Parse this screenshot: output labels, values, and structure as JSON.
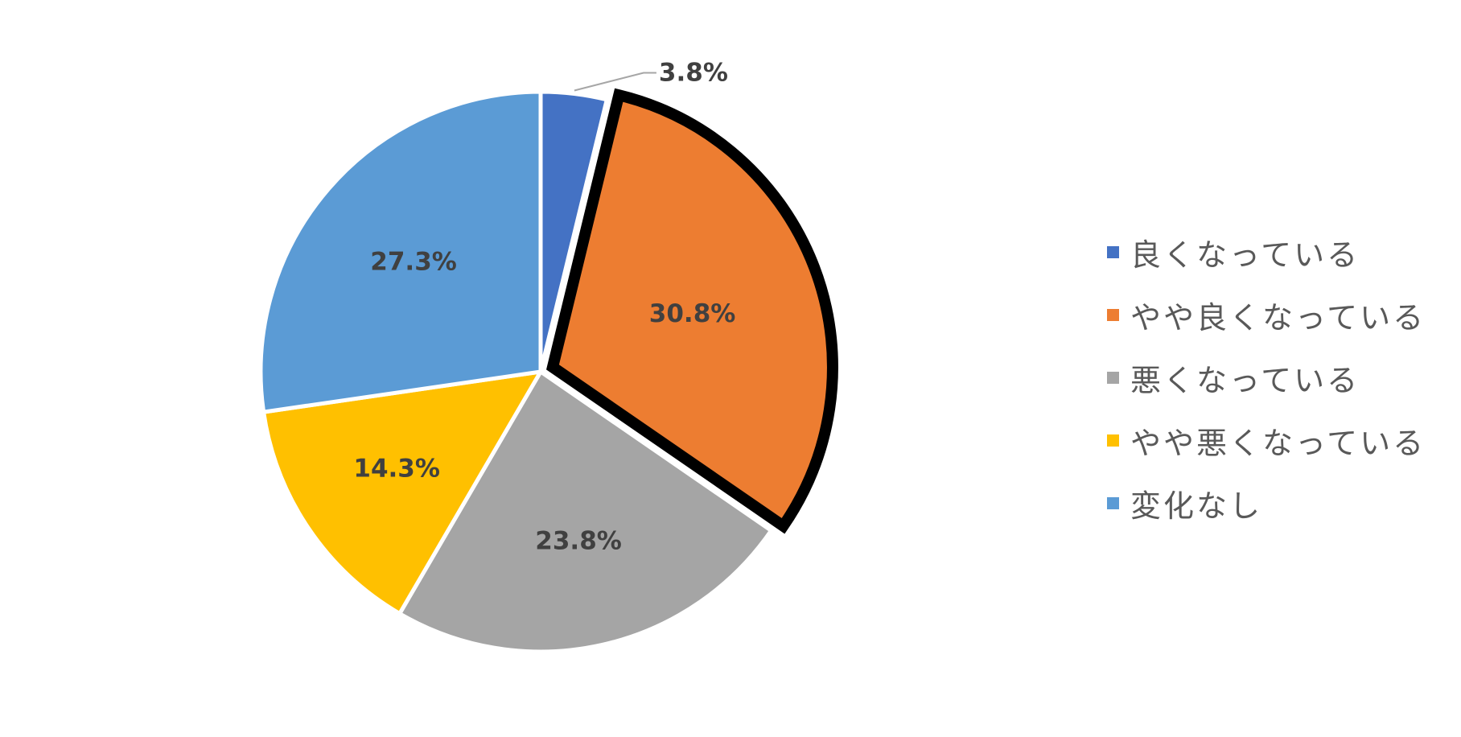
{
  "chart_data": {
    "type": "pie",
    "title": "",
    "legend_position": "right",
    "highlighted_slice": 1,
    "slices": [
      {
        "name": "良くなっている",
        "value": 3.8,
        "label": "3.8%",
        "color": "#4472C4"
      },
      {
        "name": "やや良くなっている",
        "value": 30.8,
        "label": "30.8%",
        "color": "#ED7D31"
      },
      {
        "name": "悪くなっている",
        "value": 23.8,
        "label": "23.8%",
        "color": "#A5A5A5"
      },
      {
        "name": "やや悪くなっている",
        "value": 14.3,
        "label": "14.3%",
        "color": "#FFC000"
      },
      {
        "name": "変化なし",
        "value": 27.3,
        "label": "27.3%",
        "color": "#5B9BD5"
      }
    ]
  }
}
